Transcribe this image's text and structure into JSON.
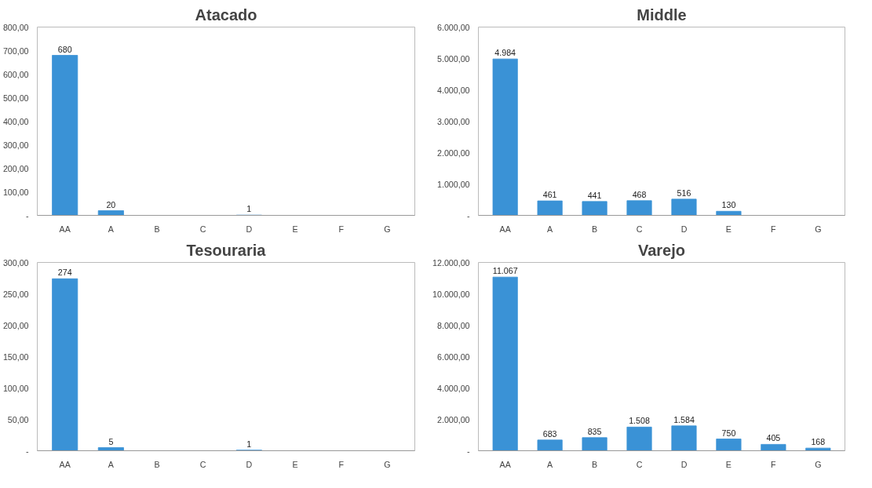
{
  "chart_data": [
    {
      "type": "bar",
      "title": "Atacado",
      "categories": [
        "AA",
        "A",
        "B",
        "C",
        "D",
        "E",
        "F",
        "G"
      ],
      "values": [
        680,
        20,
        0,
        0,
        1,
        0,
        0,
        0
      ],
      "value_labels": [
        "680",
        "20",
        null,
        null,
        "1",
        null,
        null,
        null
      ],
      "color": "#3a92d6",
      "ylim": [
        0,
        800
      ],
      "yticks": [
        {
          "value": 0,
          "label": "-"
        },
        {
          "value": 100,
          "label": "100,00"
        },
        {
          "value": 200,
          "label": "200,00"
        },
        {
          "value": 300,
          "label": "300,00"
        },
        {
          "value": 400,
          "label": "400,00"
        },
        {
          "value": 500,
          "label": "500,00"
        },
        {
          "value": 600,
          "label": "600,00"
        },
        {
          "value": 700,
          "label": "700,00"
        },
        {
          "value": 800,
          "label": "800,00"
        }
      ],
      "grid": false,
      "legend": false
    },
    {
      "type": "bar",
      "title": "Middle",
      "categories": [
        "AA",
        "A",
        "B",
        "C",
        "D",
        "E",
        "F",
        "G"
      ],
      "values": [
        4984,
        461,
        441,
        468,
        516,
        130,
        0,
        0
      ],
      "value_labels": [
        "4.984",
        "461",
        "441",
        "468",
        "516",
        "130",
        null,
        null
      ],
      "color": "#3a92d6",
      "ylim": [
        0,
        6000
      ],
      "yticks": [
        {
          "value": 0,
          "label": "-"
        },
        {
          "value": 1000,
          "label": "1.000,00"
        },
        {
          "value": 2000,
          "label": "2.000,00"
        },
        {
          "value": 3000,
          "label": "3.000,00"
        },
        {
          "value": 4000,
          "label": "4.000,00"
        },
        {
          "value": 5000,
          "label": "5.000,00"
        },
        {
          "value": 6000,
          "label": "6.000,00"
        }
      ],
      "grid": false,
      "legend": false
    },
    {
      "type": "bar",
      "title": "Tesouraria",
      "categories": [
        "AA",
        "A",
        "B",
        "C",
        "D",
        "E",
        "F",
        "G"
      ],
      "values": [
        274,
        5,
        0,
        0,
        1,
        0,
        0,
        0
      ],
      "value_labels": [
        "274",
        "5",
        null,
        null,
        "1",
        null,
        null,
        null
      ],
      "color": "#3a92d6",
      "ylim": [
        0,
        300
      ],
      "yticks": [
        {
          "value": 0,
          "label": "-"
        },
        {
          "value": 50,
          "label": "50,00"
        },
        {
          "value": 100,
          "label": "100,00"
        },
        {
          "value": 150,
          "label": "150,00"
        },
        {
          "value": 200,
          "label": "200,00"
        },
        {
          "value": 250,
          "label": "250,00"
        },
        {
          "value": 300,
          "label": "300,00"
        }
      ],
      "grid": false,
      "legend": false
    },
    {
      "type": "bar",
      "title": "Varejo",
      "categories": [
        "AA",
        "A",
        "B",
        "C",
        "D",
        "E",
        "F",
        "G"
      ],
      "values": [
        11067,
        683,
        835,
        1508,
        1584,
        750,
        405,
        168
      ],
      "value_labels": [
        "11.067",
        "683",
        "835",
        "1.508",
        "1.584",
        "750",
        "405",
        "168"
      ],
      "color": "#3a92d6",
      "ylim": [
        0,
        12000
      ],
      "yticks": [
        {
          "value": 0,
          "label": "-"
        },
        {
          "value": 2000,
          "label": "2.000,00"
        },
        {
          "value": 4000,
          "label": "4.000,00"
        },
        {
          "value": 6000,
          "label": "6.000,00"
        },
        {
          "value": 8000,
          "label": "8.000,00"
        },
        {
          "value": 10000,
          "label": "10.000,00"
        },
        {
          "value": 12000,
          "label": "12.000,00"
        }
      ],
      "grid": false,
      "legend": false
    }
  ]
}
